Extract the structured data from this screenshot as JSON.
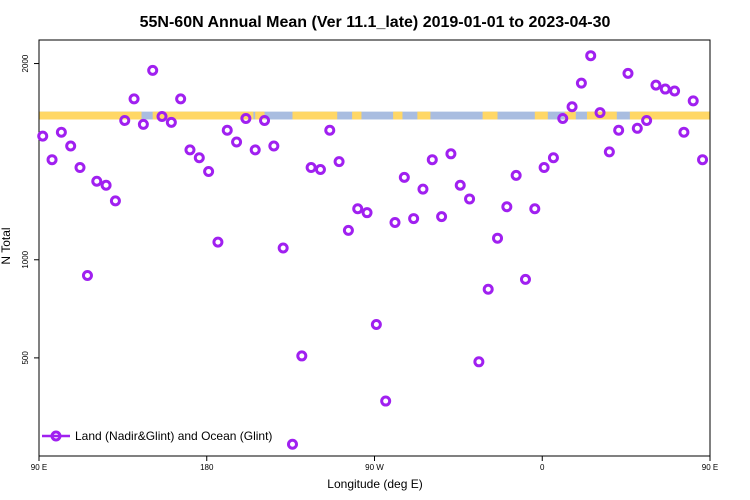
{
  "chart_data": {
    "type": "scatter",
    "title": "55N-60N Annual Mean (Ver 11.1_late)   2019-01-01 to 2023-04-30",
    "xlabel": "Longitude (deg E)",
    "ylabel": "N Total",
    "xlim": [
      90,
      450
    ],
    "ylim": [
      0,
      2120
    ],
    "x_ticks": [
      {
        "value": 90,
        "label": "90 E"
      },
      {
        "value": 180,
        "label": "180"
      },
      {
        "value": 270,
        "label": "90 W"
      },
      {
        "value": 360,
        "label": "0"
      },
      {
        "value": 450,
        "label": "90 E"
      },
      {
        "value": 540,
        "label": "180"
      }
    ],
    "y_ticks": [
      {
        "value": 500,
        "label": "500"
      },
      {
        "value": 1000,
        "label": "1000"
      },
      {
        "value": 2000,
        "label": "2000"
      }
    ],
    "legend": {
      "position": "bottom-left",
      "label": "Land (Nadir&Glint) and Ocean (Glint)"
    },
    "series_color": "#a020f0",
    "map_strip": {
      "y_low": 1715,
      "y_high": 1755,
      "ocean_color": "#a9bde0",
      "land_color": "#ffd766"
    },
    "land_ranges": [
      [
        90,
        145
      ],
      [
        151,
        205
      ],
      [
        206,
        211
      ],
      [
        226,
        250
      ],
      [
        258,
        263
      ],
      [
        280,
        285
      ],
      [
        293,
        300
      ],
      [
        328,
        336
      ],
      [
        356,
        363
      ],
      [
        372,
        378
      ],
      [
        384,
        400
      ],
      [
        407,
        450
      ],
      [
        450,
        456
      ]
    ],
    "points": [
      {
        "x": 92,
        "y": 1630
      },
      {
        "x": 97,
        "y": 1510
      },
      {
        "x": 102,
        "y": 1650
      },
      {
        "x": 107,
        "y": 1580
      },
      {
        "x": 112,
        "y": 1470
      },
      {
        "x": 116,
        "y": 920
      },
      {
        "x": 121,
        "y": 1400
      },
      {
        "x": 126,
        "y": 1380
      },
      {
        "x": 131,
        "y": 1300
      },
      {
        "x": 136,
        "y": 1710
      },
      {
        "x": 141,
        "y": 1820
      },
      {
        "x": 146,
        "y": 1690
      },
      {
        "x": 151,
        "y": 1965
      },
      {
        "x": 156,
        "y": 1730
      },
      {
        "x": 161,
        "y": 1700
      },
      {
        "x": 166,
        "y": 1820
      },
      {
        "x": 171,
        "y": 1560
      },
      {
        "x": 176,
        "y": 1520
      },
      {
        "x": 181,
        "y": 1450
      },
      {
        "x": 186,
        "y": 1090
      },
      {
        "x": 191,
        "y": 1660
      },
      {
        "x": 196,
        "y": 1600
      },
      {
        "x": 201,
        "y": 1720
      },
      {
        "x": 206,
        "y": 1560
      },
      {
        "x": 211,
        "y": 1710
      },
      {
        "x": 216,
        "y": 1580
      },
      {
        "x": 221,
        "y": 1060
      },
      {
        "x": 226,
        "y": 60
      },
      {
        "x": 231,
        "y": 510
      },
      {
        "x": 236,
        "y": 1470
      },
      {
        "x": 241,
        "y": 1460
      },
      {
        "x": 246,
        "y": 1660
      },
      {
        "x": 251,
        "y": 1500
      },
      {
        "x": 256,
        "y": 1150
      },
      {
        "x": 261,
        "y": 1260
      },
      {
        "x": 266,
        "y": 1240
      },
      {
        "x": 271,
        "y": 670
      },
      {
        "x": 276,
        "y": 280
      },
      {
        "x": 281,
        "y": 1190
      },
      {
        "x": 286,
        "y": 1420
      },
      {
        "x": 291,
        "y": 1210
      },
      {
        "x": 296,
        "y": 1360
      },
      {
        "x": 301,
        "y": 1510
      },
      {
        "x": 306,
        "y": 1220
      },
      {
        "x": 311,
        "y": 1540
      },
      {
        "x": 316,
        "y": 1380
      },
      {
        "x": 321,
        "y": 1310
      },
      {
        "x": 326,
        "y": 480
      },
      {
        "x": 331,
        "y": 850
      },
      {
        "x": 336,
        "y": 1110
      },
      {
        "x": 341,
        "y": 1270
      },
      {
        "x": 346,
        "y": 1430
      },
      {
        "x": 351,
        "y": 900
      },
      {
        "x": 356,
        "y": 1260
      },
      {
        "x": 361,
        "y": 1470
      },
      {
        "x": 366,
        "y": 1520
      },
      {
        "x": 371,
        "y": 1720
      },
      {
        "x": 376,
        "y": 1780
      },
      {
        "x": 381,
        "y": 1900
      },
      {
        "x": 386,
        "y": 2040
      },
      {
        "x": 391,
        "y": 1750
      },
      {
        "x": 396,
        "y": 1550
      },
      {
        "x": 401,
        "y": 1660
      },
      {
        "x": 406,
        "y": 1950
      },
      {
        "x": 411,
        "y": 1670
      },
      {
        "x": 416,
        "y": 1710
      },
      {
        "x": 421,
        "y": 1890
      },
      {
        "x": 426,
        "y": 1870
      },
      {
        "x": 431,
        "y": 1860
      },
      {
        "x": 436,
        "y": 1650
      },
      {
        "x": 441,
        "y": 1810
      },
      {
        "x": 446,
        "y": 1510
      }
    ]
  }
}
